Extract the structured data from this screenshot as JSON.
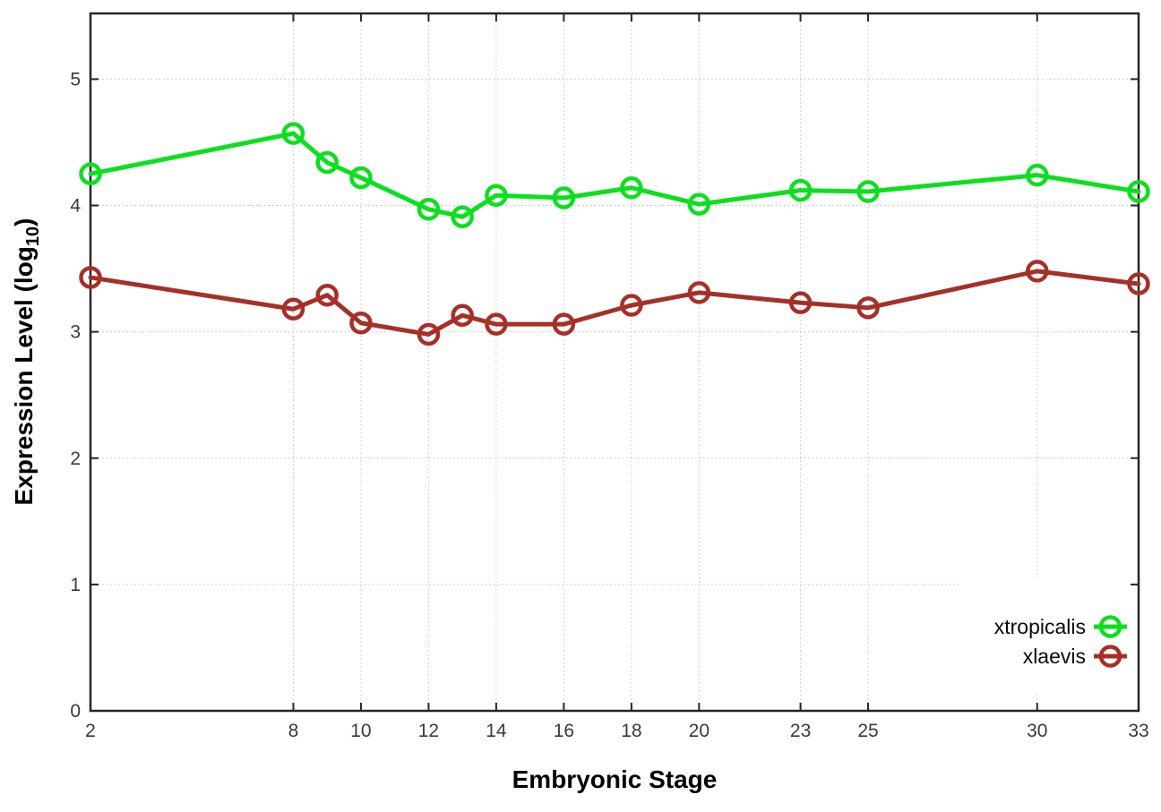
{
  "figure": {
    "background": "#ffffff",
    "xlabel": "Embryonic Stage",
    "ylabel": {
      "prefix": "Expression Level (log",
      "subscript": "10",
      "suffix": ")"
    }
  },
  "chart_data": {
    "type": "line",
    "title": "",
    "xlabel": "Embryonic Stage",
    "ylabel": "Expression Level (log10)",
    "x": [
      2,
      8,
      9,
      10,
      12,
      13,
      14,
      16,
      18,
      20,
      23,
      25,
      30,
      33
    ],
    "series": [
      {
        "name": "xtropicalis",
        "color": "#0be01e",
        "marker": "open-circle",
        "values": [
          4.25,
          4.57,
          4.34,
          4.22,
          3.97,
          3.91,
          4.08,
          4.06,
          4.14,
          4.01,
          4.12,
          4.11,
          4.24,
          4.11
        ]
      },
      {
        "name": "xlaevis",
        "color": "#a63028",
        "marker": "open-circle",
        "values": [
          3.43,
          3.18,
          3.29,
          3.07,
          2.98,
          3.13,
          3.06,
          3.06,
          3.21,
          3.31,
          3.23,
          3.19,
          3.48,
          3.38
        ]
      }
    ],
    "x_ticks": [
      2,
      8,
      10,
      12,
      14,
      16,
      18,
      20,
      23,
      25,
      30,
      33
    ],
    "x_tick_labels": [
      "2",
      "8",
      "10",
      "12",
      "14",
      "16",
      "18",
      "20",
      "23",
      "25",
      "30",
      "33"
    ],
    "y_ticks": [
      0,
      1,
      2,
      3,
      4,
      5
    ],
    "y_tick_labels": [
      "0",
      "1",
      "2",
      "3",
      "4",
      "5"
    ],
    "xlim": [
      2,
      33
    ],
    "ylim": [
      0,
      5.52
    ],
    "grid": true,
    "grid_style": "dotted",
    "legend_position": "inside-bottom-right",
    "border": "full-box"
  }
}
